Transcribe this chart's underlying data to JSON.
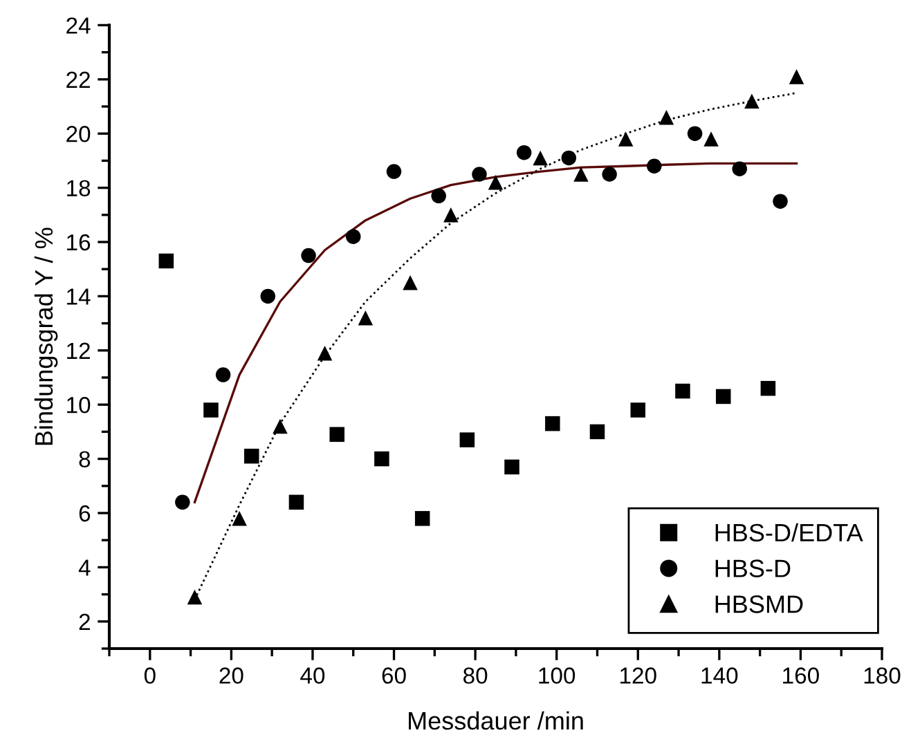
{
  "chart_data": {
    "type": "scatter",
    "xlabel": "Messdauer /min",
    "ylabel": "Bindungsgrad Y / %",
    "xlim": [
      -10,
      180
    ],
    "xticks": [
      0,
      20,
      40,
      60,
      80,
      100,
      120,
      140,
      160,
      180
    ],
    "ylim": [
      1,
      24
    ],
    "yticks": [
      2,
      4,
      6,
      8,
      10,
      12,
      14,
      16,
      18,
      20,
      22,
      24
    ],
    "grid": false,
    "legend": "bottom right",
    "series": [
      {
        "name": "HBS-D/EDTA",
        "marker": "square",
        "color": "#000000",
        "x": [
          4,
          15,
          25,
          36,
          46,
          57,
          67,
          78,
          89,
          99,
          110,
          120,
          131,
          141,
          152
        ],
        "values": [
          15.3,
          9.8,
          8.1,
          6.4,
          8.9,
          8.0,
          5.8,
          8.7,
          7.7,
          9.3,
          9.0,
          9.8,
          10.5,
          10.3,
          10.6
        ]
      },
      {
        "name": "HBS-D",
        "marker": "circle",
        "color": "#000000",
        "x": [
          8,
          18,
          29,
          39,
          50,
          60,
          71,
          81,
          92,
          103,
          113,
          124,
          134,
          145,
          155
        ],
        "values": [
          6.4,
          11.1,
          14.0,
          15.5,
          16.2,
          18.6,
          17.7,
          18.5,
          19.3,
          19.1,
          18.5,
          18.8,
          20.0,
          18.7,
          17.5
        ]
      },
      {
        "name": "HBSMD",
        "marker": "triangle",
        "color": "#000000",
        "x": [
          11,
          22,
          32,
          43,
          53,
          64,
          74,
          85,
          96,
          106,
          117,
          127,
          138,
          148,
          159
        ],
        "values": [
          2.9,
          5.8,
          9.2,
          11.9,
          13.2,
          14.5,
          17.0,
          18.2,
          19.1,
          18.5,
          19.8,
          20.6,
          19.8,
          21.2,
          22.1
        ]
      },
      {
        "type": "line",
        "line_style": "solid",
        "marker": "none",
        "color": "#5a0a0a",
        "x": [
          11,
          22,
          32,
          43,
          53,
          64,
          74,
          85,
          96,
          106,
          117,
          127,
          138,
          148,
          159
        ],
        "values": [
          6.4,
          11.1,
          13.8,
          15.7,
          16.8,
          17.6,
          18.1,
          18.4,
          18.6,
          18.75,
          18.8,
          18.85,
          18.9,
          18.9,
          18.9
        ]
      },
      {
        "type": "line",
        "line_style": "dotted",
        "marker": "none",
        "color": "#000000",
        "x": [
          11,
          22,
          32,
          43,
          53,
          64,
          74,
          85,
          96,
          106,
          117,
          127,
          138,
          148,
          159
        ],
        "values": [
          2.8,
          6.3,
          9.3,
          11.8,
          13.8,
          15.4,
          16.7,
          17.8,
          18.7,
          19.4,
          20.0,
          20.5,
          20.9,
          21.2,
          21.5
        ]
      }
    ]
  }
}
